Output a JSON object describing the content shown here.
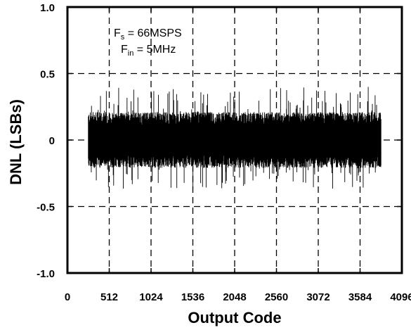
{
  "chart_data": {
    "type": "line",
    "title": "",
    "xlabel": "Output Code",
    "ylabel": "DNL (LSBs)",
    "xlim": [
      0,
      4096
    ],
    "ylim": [
      -1.0,
      1.0
    ],
    "x_ticks": [
      0,
      512,
      1024,
      1536,
      2048,
      2560,
      3072,
      3584,
      4096
    ],
    "x_tick_labels": [
      "0",
      "512",
      "1024",
      "1536",
      "2048",
      "2560",
      "3072",
      "3584",
      "4096"
    ],
    "y_ticks": [
      1.0,
      0.5,
      0,
      -0.5,
      -1.0
    ],
    "y_tick_labels": [
      "1.0",
      "0.5",
      "0",
      "-0.5",
      "-1.0"
    ],
    "grid": true,
    "grid_style": "dashed",
    "line_color": "#000000",
    "annotation": {
      "line1": {
        "main": "F",
        "sub": "s",
        "rest": " = 66MSPS"
      },
      "line2": {
        "main": "F",
        "sub": "in",
        "rest": " = 5MHz"
      }
    },
    "series": [
      {
        "x_range": [
          256,
          3840
        ],
        "typical_band": [
          -0.2,
          0.2
        ],
        "peak_max": 0.4,
        "peak_min": -0.37
      }
    ]
  }
}
